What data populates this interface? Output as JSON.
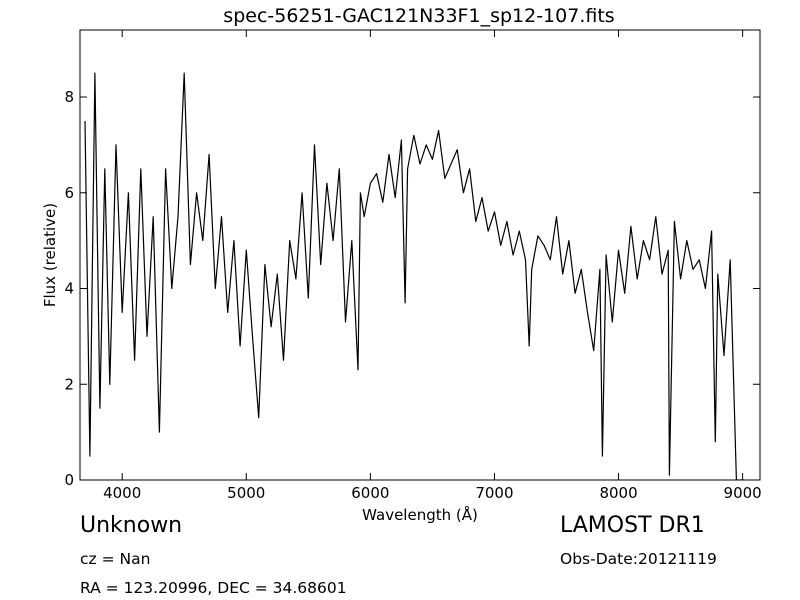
{
  "chart_data": {
    "type": "line",
    "title": "spec-56251-GAC121N33F1_sp12-107.fits",
    "xlabel": "Wavelength (Å)",
    "ylabel": "Flux (relative)",
    "xlim": [
      3660,
      9140
    ],
    "ylim": [
      0,
      9.4
    ],
    "xticks": [
      "4000",
      "5000",
      "6000",
      "7000",
      "8000",
      "9000"
    ],
    "yticks": [
      "0",
      "2",
      "4",
      "6",
      "8"
    ],
    "grid": false,
    "series": [
      {
        "x": [
          3700,
          3740,
          3780,
          3820,
          3860,
          3900,
          3950,
          4000,
          4050,
          4100,
          4150,
          4200,
          4250,
          4300,
          4350,
          4400,
          4450,
          4500,
          4550,
          4600,
          4650,
          4700,
          4750,
          4800,
          4850,
          4900,
          4950,
          5000,
          5050,
          5100,
          5150,
          5200,
          5250,
          5300,
          5350,
          5400,
          5450,
          5500,
          5550,
          5600,
          5650,
          5700,
          5750,
          5800,
          5850,
          5900,
          5920,
          5950,
          6000,
          6050,
          6100,
          6150,
          6200,
          6250,
          6280,
          6300,
          6350,
          6400,
          6450,
          6500,
          6550,
          6600,
          6650,
          6700,
          6750,
          6800,
          6850,
          6900,
          6950,
          7000,
          7050,
          7100,
          7150,
          7200,
          7250,
          7280,
          7300,
          7350,
          7400,
          7450,
          7500,
          7550,
          7600,
          7650,
          7700,
          7750,
          7800,
          7850,
          7870,
          7900,
          7950,
          8000,
          8050,
          8100,
          8150,
          8200,
          8250,
          8300,
          8350,
          8400,
          8410,
          8450,
          8500,
          8550,
          8600,
          8650,
          8700,
          8750,
          8780,
          8800,
          8850,
          8900,
          8950,
          9000,
          9010
        ],
        "y": [
          7.5,
          0.5,
          8.5,
          1.5,
          6.5,
          2.0,
          7.0,
          3.5,
          6.0,
          2.5,
          6.5,
          3.0,
          5.5,
          1.0,
          6.5,
          4.0,
          5.5,
          8.5,
          4.5,
          6.0,
          5.0,
          6.8,
          4.0,
          5.5,
          3.5,
          5.0,
          2.8,
          4.8,
          3.0,
          1.3,
          4.5,
          3.2,
          4.3,
          2.5,
          5.0,
          4.2,
          6.0,
          3.8,
          7.0,
          4.5,
          6.2,
          5.0,
          6.5,
          3.3,
          5.0,
          2.3,
          6.0,
          5.5,
          6.2,
          6.4,
          5.8,
          6.8,
          5.9,
          7.1,
          3.7,
          6.5,
          7.2,
          6.6,
          7.0,
          6.7,
          7.3,
          6.3,
          6.6,
          6.9,
          6.0,
          6.5,
          5.4,
          5.9,
          5.2,
          5.6,
          4.9,
          5.4,
          4.7,
          5.2,
          4.6,
          2.8,
          4.4,
          5.1,
          4.9,
          4.6,
          5.5,
          4.3,
          5.0,
          3.9,
          4.4,
          3.5,
          2.7,
          4.4,
          0.5,
          4.7,
          3.3,
          4.8,
          3.9,
          5.3,
          4.2,
          5.0,
          4.6,
          5.5,
          4.3,
          4.8,
          0.1,
          5.4,
          4.2,
          5.0,
          4.4,
          4.6,
          4.0,
          5.2,
          0.8,
          4.3,
          2.6,
          4.6,
          0.0,
          0.0,
          0.0
        ]
      }
    ]
  },
  "footer": {
    "class_label": "Unknown",
    "cz_label": "cz = Nan",
    "coords_label": "RA = 123.20996, DEC = 34.68601",
    "survey_label": "LAMOST DR1",
    "obs_date_label": "Obs-Date:20121119"
  }
}
